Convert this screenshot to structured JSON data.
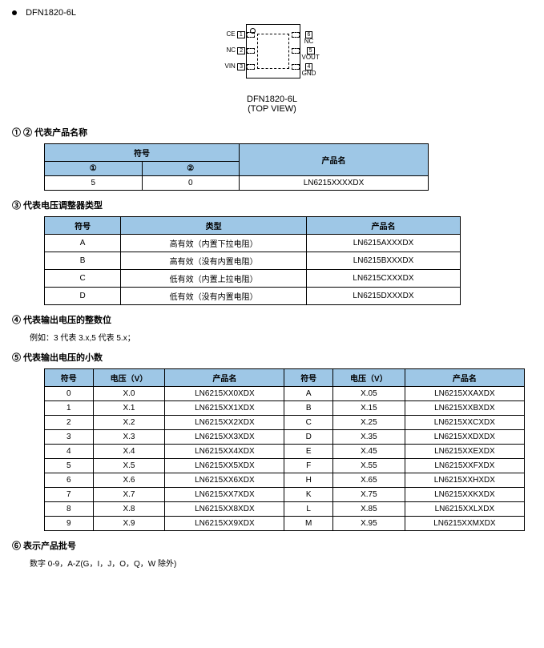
{
  "header": {
    "part": "DFN1820-6L"
  },
  "package": {
    "left_pins": [
      {
        "num": "1",
        "name": "CE"
      },
      {
        "num": "2",
        "name": "NC"
      },
      {
        "num": "3",
        "name": "VIN"
      }
    ],
    "right_pins": [
      {
        "num": "6",
        "name": "NC"
      },
      {
        "num": "5",
        "name": "VOUT"
      },
      {
        "num": "4",
        "name": "GND"
      }
    ],
    "caption_line1": "DFN1820-6L",
    "caption_line2": "(TOP VIEW)"
  },
  "s1": {
    "title": "① ②  代表产品名称",
    "h_symbol": "符号",
    "h_sym1": "①",
    "h_sym2": "②",
    "h_prod": "产品名",
    "row": {
      "c1": "5",
      "c2": "0",
      "c3": "LN6215XXXXDX"
    }
  },
  "s3": {
    "title": "③  代表电压调整器类型",
    "h_sym": "符号",
    "h_type": "类型",
    "h_prod": "产品名",
    "rows": [
      {
        "s": "A",
        "t": "高有效（内置下拉电阻）",
        "p": "LN6215AXXXDX"
      },
      {
        "s": "B",
        "t": "高有效（没有内置电阻）",
        "p": "LN6215BXXXDX"
      },
      {
        "s": "C",
        "t": "低有效（内置上拉电阻）",
        "p": "LN6215CXXXDX"
      },
      {
        "s": "D",
        "t": "低有效（没有内置电阻）",
        "p": "LN6215DXXXDX"
      }
    ]
  },
  "s4": {
    "title": "④  代表输出电压的整数位",
    "note": "例如：3 代表 3.x,5 代表 5.x；"
  },
  "s5": {
    "title": "⑤  代表输出电压的小数",
    "h_sym": "符号",
    "h_v": "电压（V）",
    "h_prod": "产品名",
    "rows": [
      {
        "a": "0",
        "av": "X.0",
        "ap": "LN6215XX0XDX",
        "b": "A",
        "bv": "X.05",
        "bp": "LN6215XXAXDX"
      },
      {
        "a": "1",
        "av": "X.1",
        "ap": "LN6215XX1XDX",
        "b": "B",
        "bv": "X.15",
        "bp": "LN6215XXBXDX"
      },
      {
        "a": "2",
        "av": "X.2",
        "ap": "LN6215XX2XDX",
        "b": "C",
        "bv": "X.25",
        "bp": "LN6215XXCXDX"
      },
      {
        "a": "3",
        "av": "X.3",
        "ap": "LN6215XX3XDX",
        "b": "D",
        "bv": "X.35",
        "bp": "LN6215XXDXDX"
      },
      {
        "a": "4",
        "av": "X.4",
        "ap": "LN6215XX4XDX",
        "b": "E",
        "bv": "X.45",
        "bp": "LN6215XXEXDX"
      },
      {
        "a": "5",
        "av": "X.5",
        "ap": "LN6215XX5XDX",
        "b": "F",
        "bv": "X.55",
        "bp": "LN6215XXFXDX"
      },
      {
        "a": "6",
        "av": "X.6",
        "ap": "LN6215XX6XDX",
        "b": "H",
        "bv": "X.65",
        "bp": "LN6215XXHXDX"
      },
      {
        "a": "7",
        "av": "X.7",
        "ap": "LN6215XX7XDX",
        "b": "K",
        "bv": "X.75",
        "bp": "LN6215XXKXDX"
      },
      {
        "a": "8",
        "av": "X.8",
        "ap": "LN6215XX8XDX",
        "b": "L",
        "bv": "X.85",
        "bp": "LN6215XXLXDX"
      },
      {
        "a": "9",
        "av": "X.9",
        "ap": "LN6215XX9XDX",
        "b": "M",
        "bv": "X.95",
        "bp": "LN6215XXMXDX"
      }
    ]
  },
  "s6": {
    "title": "⑥  表示产品批号",
    "note": "数字 0-9，A-Z(G，I，J，O，Q，W 除外)"
  },
  "colors": {
    "header_bg": "#9ec7e6",
    "border": "#000000",
    "text": "#000000",
    "bg": "#ffffff"
  }
}
